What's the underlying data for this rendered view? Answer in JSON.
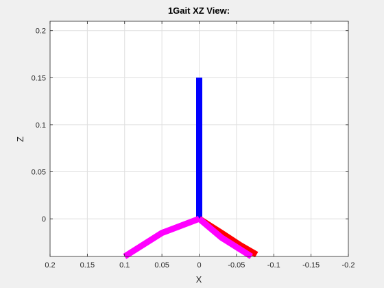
{
  "chart_data": {
    "type": "line",
    "title": "1Gait XZ View:",
    "xlabel": "X",
    "ylabel": "Z",
    "xlim": [
      0.2,
      -0.2
    ],
    "x_reversed": true,
    "ylim": [
      -0.04,
      0.21
    ],
    "x_ticks": [
      0.2,
      0.15,
      0.1,
      0.05,
      0,
      -0.05,
      -0.1,
      -0.15,
      -0.2
    ],
    "x_tick_labels": [
      "0.2",
      "0.15",
      "0.1",
      "0.05",
      "0",
      "-0.05",
      "-0.1",
      "-0.15",
      "-0.2"
    ],
    "y_ticks": [
      0,
      0.05,
      0.1,
      0.15,
      0.2
    ],
    "y_tick_labels": [
      "0",
      "0.05",
      "0.1",
      "0.15",
      "0.2"
    ],
    "grid": true,
    "series": [
      {
        "color": "#0000ff",
        "x": [
          0,
          0
        ],
        "y": [
          0,
          0.15
        ]
      },
      {
        "color": "#ff0000",
        "x": [
          0,
          -0.03,
          -0.055,
          -0.077
        ],
        "y": [
          0,
          -0.015,
          -0.028,
          -0.038
        ]
      },
      {
        "color": "#ff00ff",
        "x": [
          0,
          -0.03,
          -0.07
        ],
        "y": [
          0,
          -0.02,
          -0.04
        ]
      },
      {
        "color": "#ff00ff",
        "x": [
          0,
          0.05,
          0.1
        ],
        "y": [
          0,
          -0.015,
          -0.04
        ]
      }
    ]
  }
}
